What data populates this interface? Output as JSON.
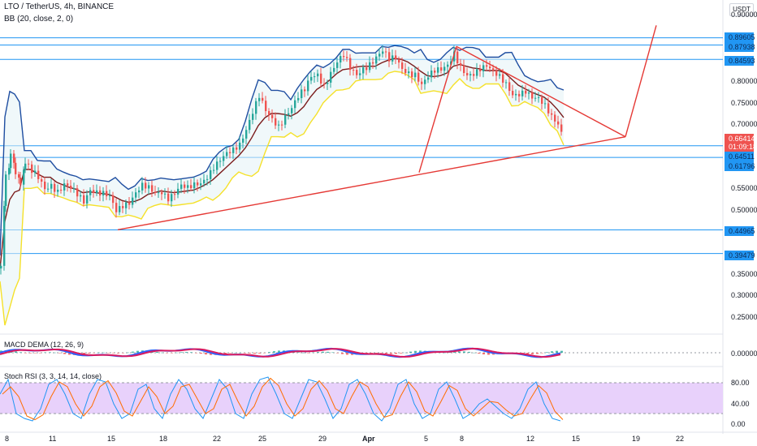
{
  "header": {
    "symbol_line": "LTO / TetherUS, 4h, BINANCE",
    "bb_line": "BB (20, close, 2, 0)",
    "currency_button": "USDT"
  },
  "indicators": {
    "macd_label": "MACD DEMA (12, 26, 9)",
    "stoch_label": "Stoch RSI (3, 3, 14, 14, close)"
  },
  "price_axis": {
    "ticks": [
      "0.90000",
      "0.80000",
      "0.75000",
      "0.70000",
      "0.55000",
      "0.50000",
      "0.35000",
      "0.30000",
      "0.25000"
    ],
    "level_labels": [
      "0.89605",
      "0.87938",
      "0.84593",
      "0.64511",
      "0.61796",
      "0.44965",
      "0.39479"
    ],
    "current_price": "0.66414",
    "countdown": "01:09:18"
  },
  "macd_axis": {
    "ticks": [
      "0.00000"
    ]
  },
  "stoch_axis": {
    "ticks": [
      "80.00",
      "40.00",
      "0.00"
    ]
  },
  "time_axis": {
    "labels": [
      "8",
      "11",
      "15",
      "18",
      "22",
      "25",
      "29",
      "Apr",
      "5",
      "8",
      "12",
      "15",
      "19",
      "22"
    ]
  },
  "colors": {
    "up": "#26a69a",
    "down": "#ef5350",
    "bb_upper": "#1f4ea1",
    "bb_lower": "#f5e12a",
    "bb_basis": "#7b1c1c",
    "level_line": "#2196f3",
    "trend": "#e53935",
    "stoch_band": "#e1c4fb",
    "current_price_bg": "#ef5350"
  },
  "chart_data": {
    "type": "candlestick",
    "symbol": "LTO / TetherUS",
    "timeframe": "4h",
    "exchange": "BINANCE",
    "ylim": [
      0.23,
      0.95
    ],
    "horizontal_levels": [
      0.89605,
      0.87938,
      0.84593,
      0.64511,
      0.61796,
      0.44965,
      0.39479
    ],
    "last_price": 0.66414,
    "price_path": [
      [
        0,
        0.36
      ],
      [
        6,
        0.58
      ],
      [
        12,
        0.62
      ],
      [
        18,
        0.59
      ],
      [
        24,
        0.56
      ],
      [
        30,
        0.6
      ],
      [
        38,
        0.58
      ],
      [
        46,
        0.57
      ],
      [
        54,
        0.55
      ],
      [
        62,
        0.56
      ],
      [
        70,
        0.54
      ],
      [
        78,
        0.55
      ],
      [
        86,
        0.54
      ],
      [
        94,
        0.53
      ],
      [
        102,
        0.52
      ],
      [
        110,
        0.55
      ],
      [
        118,
        0.54
      ],
      [
        126,
        0.53
      ],
      [
        134,
        0.52
      ],
      [
        142,
        0.49
      ],
      [
        150,
        0.51
      ],
      [
        158,
        0.52
      ],
      [
        166,
        0.54
      ],
      [
        174,
        0.55
      ],
      [
        182,
        0.54
      ],
      [
        190,
        0.53
      ],
      [
        198,
        0.54
      ],
      [
        206,
        0.53
      ],
      [
        214,
        0.54
      ],
      [
        222,
        0.55
      ],
      [
        230,
        0.54
      ],
      [
        238,
        0.55
      ],
      [
        246,
        0.56
      ],
      [
        254,
        0.58
      ],
      [
        262,
        0.6
      ],
      [
        270,
        0.61
      ],
      [
        278,
        0.62
      ],
      [
        286,
        0.63
      ],
      [
        294,
        0.65
      ],
      [
        302,
        0.69
      ],
      [
        310,
        0.73
      ],
      [
        318,
        0.76
      ],
      [
        326,
        0.72
      ],
      [
        334,
        0.7
      ],
      [
        342,
        0.69
      ],
      [
        350,
        0.72
      ],
      [
        358,
        0.74
      ],
      [
        366,
        0.76
      ],
      [
        374,
        0.77
      ],
      [
        382,
        0.8
      ],
      [
        390,
        0.81
      ],
      [
        398,
        0.79
      ],
      [
        406,
        0.82
      ],
      [
        414,
        0.84
      ],
      [
        422,
        0.85
      ],
      [
        430,
        0.82
      ],
      [
        438,
        0.81
      ],
      [
        446,
        0.83
      ],
      [
        454,
        0.84
      ],
      [
        462,
        0.85
      ],
      [
        470,
        0.86
      ],
      [
        478,
        0.84
      ],
      [
        486,
        0.85
      ],
      [
        494,
        0.83
      ],
      [
        502,
        0.82
      ],
      [
        510,
        0.81
      ],
      [
        518,
        0.78
      ],
      [
        526,
        0.8
      ],
      [
        534,
        0.82
      ],
      [
        542,
        0.83
      ],
      [
        550,
        0.84
      ],
      [
        558,
        0.86
      ],
      [
        566,
        0.82
      ],
      [
        574,
        0.8
      ],
      [
        582,
        0.81
      ],
      [
        590,
        0.83
      ],
      [
        598,
        0.84
      ],
      [
        606,
        0.82
      ],
      [
        614,
        0.8
      ],
      [
        622,
        0.78
      ],
      [
        630,
        0.76
      ],
      [
        638,
        0.77
      ],
      [
        646,
        0.78
      ],
      [
        654,
        0.76
      ],
      [
        662,
        0.75
      ],
      [
        670,
        0.73
      ],
      [
        678,
        0.71
      ],
      [
        686,
        0.7
      ],
      [
        694,
        0.664
      ]
    ],
    "trend_lines": [
      {
        "name": "support",
        "from": [
          145,
          0.45
        ],
        "to": [
          770,
          0.666
        ]
      },
      {
        "name": "upper",
        "from": [
          562,
          0.876
        ],
        "to": [
          770,
          0.666
        ]
      },
      {
        "name": "projection-left",
        "from": [
          516,
          0.583
        ],
        "to": [
          562,
          0.876
        ]
      },
      {
        "name": "projection-right",
        "from": [
          770,
          0.666
        ],
        "to": [
          808,
          0.925
        ]
      }
    ],
    "stoch_rsi": {
      "ylim": [
        0,
        100
      ],
      "k": [
        [
          0,
          60
        ],
        [
          10,
          90
        ],
        [
          20,
          20
        ],
        [
          30,
          10
        ],
        [
          40,
          5
        ],
        [
          50,
          30
        ],
        [
          60,
          80
        ],
        [
          70,
          90
        ],
        [
          80,
          60
        ],
        [
          90,
          20
        ],
        [
          100,
          10
        ],
        [
          110,
          60
        ],
        [
          120,
          90
        ],
        [
          130,
          85
        ],
        [
          140,
          40
        ],
        [
          150,
          10
        ],
        [
          160,
          20
        ],
        [
          170,
          70
        ],
        [
          180,
          80
        ],
        [
          190,
          30
        ],
        [
          200,
          10
        ],
        [
          210,
          60
        ],
        [
          220,
          90
        ],
        [
          230,
          70
        ],
        [
          240,
          30
        ],
        [
          250,
          10
        ],
        [
          260,
          50
        ],
        [
          270,
          90
        ],
        [
          280,
          70
        ],
        [
          290,
          20
        ],
        [
          300,
          10
        ],
        [
          310,
          60
        ],
        [
          320,
          90
        ],
        [
          330,
          95
        ],
        [
          340,
          60
        ],
        [
          350,
          20
        ],
        [
          360,
          10
        ],
        [
          370,
          50
        ],
        [
          380,
          90
        ],
        [
          390,
          85
        ],
        [
          400,
          50
        ],
        [
          410,
          10
        ],
        [
          420,
          30
        ],
        [
          430,
          80
        ],
        [
          440,
          90
        ],
        [
          450,
          60
        ],
        [
          460,
          20
        ],
        [
          470,
          5
        ],
        [
          480,
          30
        ],
        [
          490,
          80
        ],
        [
          500,
          90
        ],
        [
          510,
          40
        ],
        [
          520,
          10
        ],
        [
          530,
          20
        ],
        [
          540,
          70
        ],
        [
          550,
          85
        ],
        [
          560,
          50
        ],
        [
          570,
          10
        ],
        [
          580,
          20
        ],
        [
          590,
          40
        ],
        [
          600,
          50
        ],
        [
          610,
          35
        ],
        [
          620,
          20
        ],
        [
          630,
          10
        ],
        [
          640,
          30
        ],
        [
          650,
          70
        ],
        [
          660,
          85
        ],
        [
          670,
          40
        ],
        [
          680,
          10
        ],
        [
          690,
          5
        ]
      ]
    },
    "macd": {
      "zero": 0.0
    }
  }
}
